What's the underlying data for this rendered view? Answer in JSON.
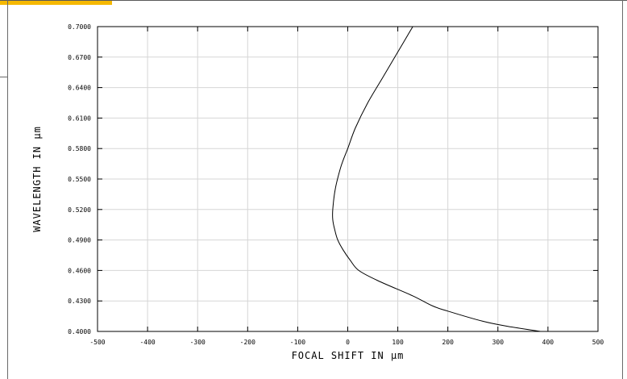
{
  "chart_data": {
    "type": "line",
    "title": "",
    "xlabel": "FOCAL SHIFT IN µm",
    "ylabel": "WAVELENGTH IN µm",
    "xlim": [
      -500,
      500
    ],
    "ylim": [
      0.4,
      0.7
    ],
    "x_ticks": [
      "-500",
      "-400",
      "-300",
      "-200",
      "-100",
      "0",
      "100",
      "200",
      "300",
      "400",
      "500"
    ],
    "x_tick_values": [
      -500,
      -400,
      -300,
      -200,
      -100,
      0,
      100,
      200,
      300,
      400,
      500
    ],
    "y_ticks": [
      "0.4000",
      "0.4300",
      "0.4600",
      "0.4900",
      "0.5200",
      "0.5500",
      "0.5800",
      "0.6100",
      "0.6400",
      "0.6700",
      "0.7000"
    ],
    "y_tick_values": [
      0.4,
      0.43,
      0.46,
      0.49,
      0.52,
      0.55,
      0.58,
      0.61,
      0.64,
      0.67,
      0.7
    ],
    "grid": true,
    "legend": "none",
    "series": [
      {
        "x": [
          385,
          320,
          270,
          200,
          170,
          130,
          60,
          22,
          5,
          -9,
          -20,
          -26,
          -30,
          -30,
          -25,
          -15,
          -8,
          0,
          15,
          40,
          70,
          100,
          130
        ],
        "y": [
          0.4,
          0.405,
          0.41,
          0.42,
          0.425,
          0.435,
          0.45,
          0.46,
          0.47,
          0.48,
          0.49,
          0.5,
          0.51,
          0.52,
          0.54,
          0.56,
          0.57,
          0.58,
          0.6,
          0.625,
          0.65,
          0.675,
          0.7
        ]
      }
    ],
    "colors": {
      "line": "#000000",
      "grid": "#d6d6d6",
      "frame": "#000000"
    }
  }
}
